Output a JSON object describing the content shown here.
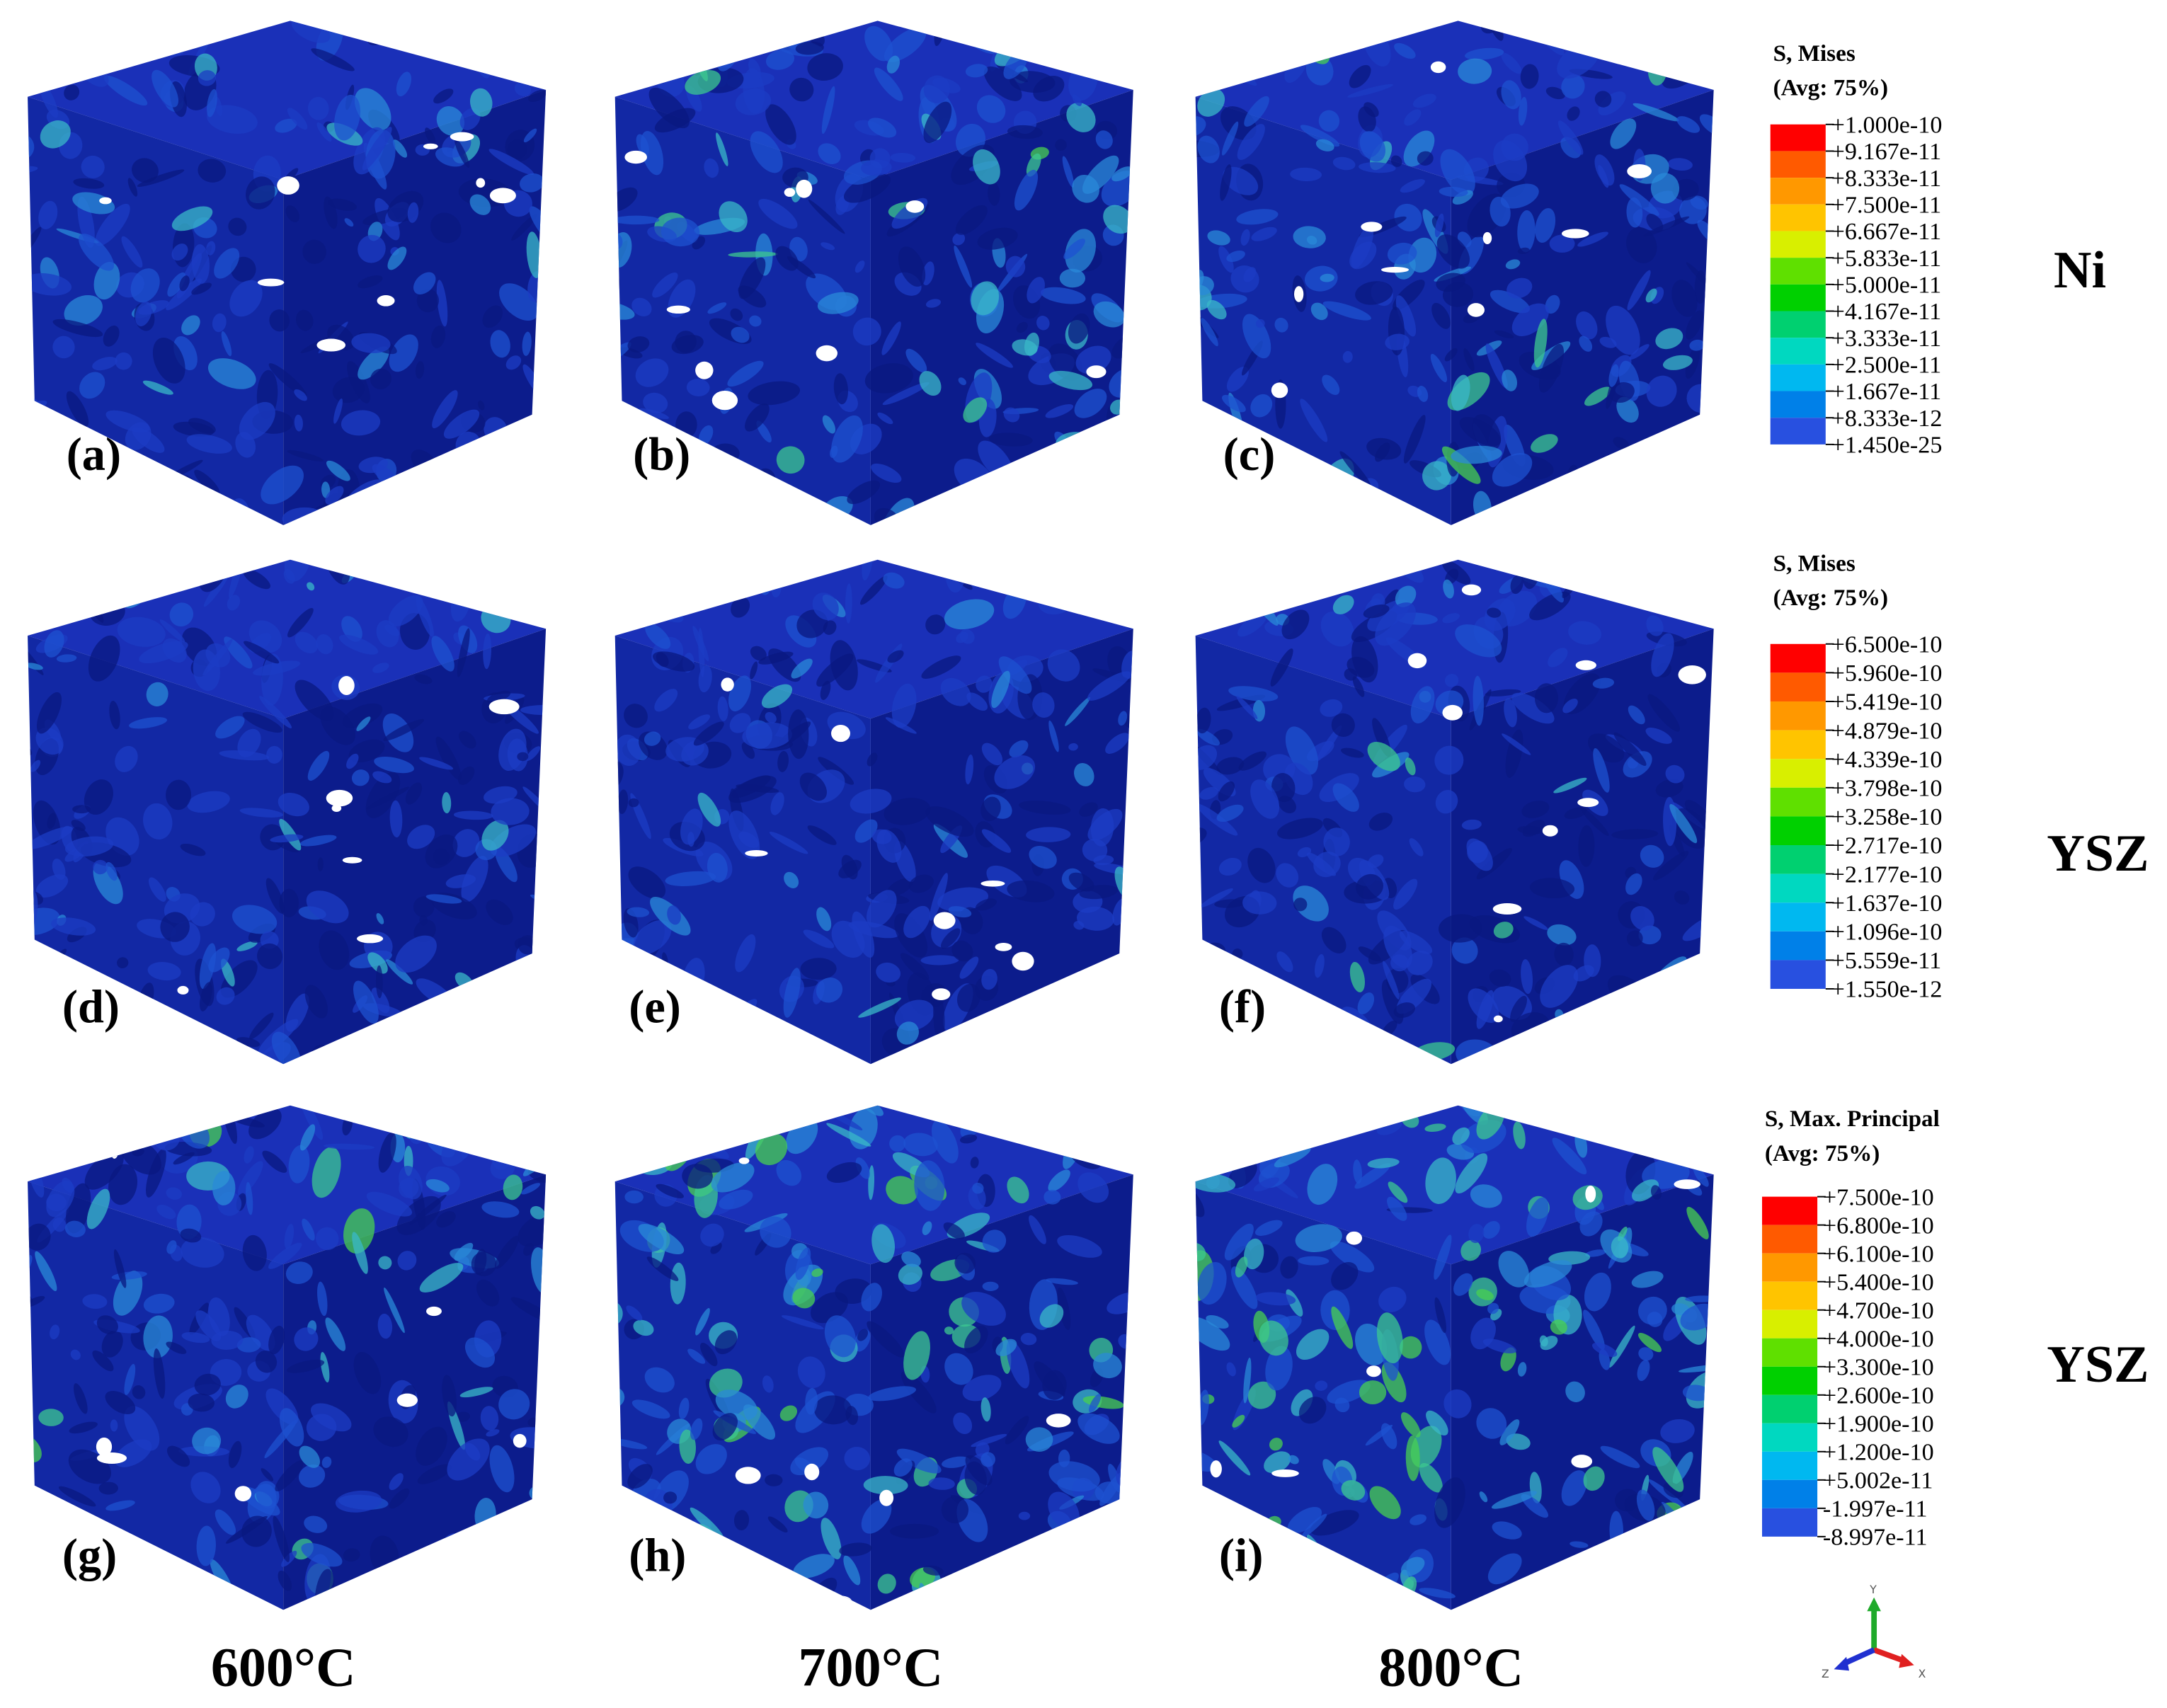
{
  "panels": [
    {
      "label": "(a)"
    },
    {
      "label": "(b)"
    },
    {
      "label": "(c)"
    },
    {
      "label": "(d)"
    },
    {
      "label": "(e)"
    },
    {
      "label": "(f)"
    },
    {
      "label": "(g)"
    },
    {
      "label": "(h)"
    },
    {
      "label": "(i)"
    }
  ],
  "columns": [
    "600°C",
    "700°C",
    "800°C"
  ],
  "rows": [
    {
      "label": "Ni",
      "legend": {
        "title": "S, Mises",
        "subtitle": "(Avg: 75%)",
        "values": [
          "+1.000e-10",
          "+9.167e-11",
          "+8.333e-11",
          "+7.500e-11",
          "+6.667e-11",
          "+5.833e-11",
          "+5.000e-11",
          "+4.167e-11",
          "+3.333e-11",
          "+2.500e-11",
          "+1.667e-11",
          "+8.333e-12",
          "+1.450e-25"
        ]
      }
    },
    {
      "label": "YSZ",
      "legend": {
        "title": "S, Mises",
        "subtitle": "(Avg: 75%)",
        "values": [
          "+6.500e-10",
          "+5.960e-10",
          "+5.419e-10",
          "+4.879e-10",
          "+4.339e-10",
          "+3.798e-10",
          "+3.258e-10",
          "+2.717e-10",
          "+2.177e-10",
          "+1.637e-10",
          "+1.096e-10",
          "+5.559e-11",
          "+1.550e-12"
        ]
      }
    },
    {
      "label": "YSZ",
      "legend": {
        "title": "S, Max. Principal",
        "subtitle": "(Avg: 75%)",
        "values": [
          "+7.500e-10",
          "+6.800e-10",
          "+6.100e-10",
          "+5.400e-10",
          "+4.700e-10",
          "+4.000e-10",
          "+3.300e-10",
          "+2.600e-10",
          "+1.900e-10",
          "+1.200e-10",
          "+5.002e-11",
          "-1.997e-11",
          "-8.997e-11"
        ]
      }
    }
  ],
  "triad": {
    "y": "Y",
    "z": "Z",
    "x": "X"
  }
}
